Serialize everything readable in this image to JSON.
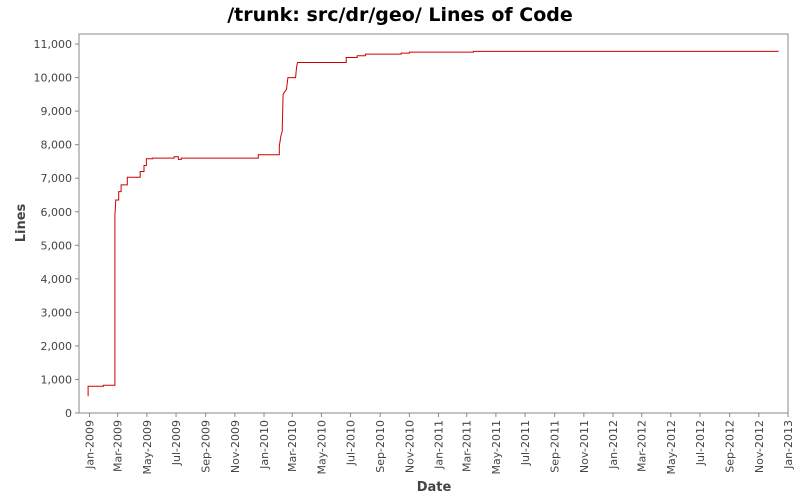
{
  "chart_data": {
    "type": "line",
    "title": "/trunk: src/dr/geo/ Lines of Code",
    "xlabel": "Date",
    "ylabel": "Lines",
    "ylim": [
      0,
      11300
    ],
    "xlim": [
      "2008-12-10",
      "2013-01-01"
    ],
    "grid": false,
    "legend": "none",
    "line_color": "#cc0000",
    "yticks": [
      0,
      1000,
      2000,
      3000,
      4000,
      5000,
      6000,
      7000,
      8000,
      9000,
      10000,
      11000
    ],
    "ytick_labels": [
      "0",
      "1,000",
      "2,000",
      "3,000",
      "4,000",
      "5,000",
      "6,000",
      "7,000",
      "8,000",
      "9,000",
      "10,000",
      "11,000"
    ],
    "xticks": [
      "2009-01-01",
      "2009-03-01",
      "2009-05-01",
      "2009-07-01",
      "2009-09-01",
      "2009-11-01",
      "2010-01-01",
      "2010-03-01",
      "2010-05-01",
      "2010-07-01",
      "2010-09-01",
      "2010-11-01",
      "2011-01-01",
      "2011-03-01",
      "2011-05-01",
      "2011-07-01",
      "2011-09-01",
      "2011-11-01",
      "2012-01-01",
      "2012-03-01",
      "2012-05-01",
      "2012-07-01",
      "2012-09-01",
      "2012-11-01",
      "2013-01-01"
    ],
    "xtick_labels": [
      "Jan-2009",
      "Mar-2009",
      "May-2009",
      "Jul-2009",
      "Sep-2009",
      "Nov-2009",
      "Jan-2010",
      "Mar-2010",
      "May-2010",
      "Jul-2010",
      "Sep-2010",
      "Nov-2010",
      "Jan-2011",
      "Mar-2011",
      "May-2011",
      "Jul-2011",
      "Sep-2011",
      "Nov-2011",
      "Jan-2012",
      "Mar-2012",
      "May-2012",
      "Jul-2012",
      "Sep-2012",
      "Nov-2012",
      "Jan-2013"
    ],
    "series": [
      {
        "points": [
          [
            "2008-12-29",
            500
          ],
          [
            "2008-12-29",
            800
          ],
          [
            "2009-01-30",
            800
          ],
          [
            "2009-01-30",
            830
          ],
          [
            "2009-02-23",
            830
          ],
          [
            "2009-02-23",
            5900
          ],
          [
            "2009-02-24",
            6100
          ],
          [
            "2009-02-25",
            6350
          ],
          [
            "2009-03-03",
            6350
          ],
          [
            "2009-03-03",
            6600
          ],
          [
            "2009-03-08",
            6600
          ],
          [
            "2009-03-08",
            6800
          ],
          [
            "2009-03-21",
            6800
          ],
          [
            "2009-03-21",
            7030
          ],
          [
            "2009-04-17",
            7030
          ],
          [
            "2009-04-17",
            7200
          ],
          [
            "2009-04-25",
            7200
          ],
          [
            "2009-04-25",
            7380
          ],
          [
            "2009-04-30",
            7380
          ],
          [
            "2009-04-30",
            7580
          ],
          [
            "2009-05-13",
            7580
          ],
          [
            "2009-05-13",
            7600
          ],
          [
            "2009-06-27",
            7600
          ],
          [
            "2009-06-27",
            7640
          ],
          [
            "2009-07-06",
            7640
          ],
          [
            "2009-07-06",
            7560
          ],
          [
            "2009-07-12",
            7560
          ],
          [
            "2009-07-12",
            7600
          ],
          [
            "2009-12-20",
            7600
          ],
          [
            "2009-12-20",
            7700
          ],
          [
            "2010-02-02",
            7700
          ],
          [
            "2010-02-02",
            7950
          ],
          [
            "2010-02-05",
            8250
          ],
          [
            "2010-02-08",
            8400
          ],
          [
            "2010-02-10",
            9500
          ],
          [
            "2010-02-12",
            9550
          ],
          [
            "2010-02-17",
            9650
          ],
          [
            "2010-02-20",
            10000
          ],
          [
            "2010-03-08",
            10000
          ],
          [
            "2010-03-10",
            10300
          ],
          [
            "2010-03-12",
            10450
          ],
          [
            "2010-06-22",
            10450
          ],
          [
            "2010-06-22",
            10600
          ],
          [
            "2010-07-15",
            10600
          ],
          [
            "2010-07-15",
            10650
          ],
          [
            "2010-08-01",
            10650
          ],
          [
            "2010-08-01",
            10700
          ],
          [
            "2010-10-15",
            10700
          ],
          [
            "2010-10-15",
            10730
          ],
          [
            "2010-11-01",
            10730
          ],
          [
            "2010-11-01",
            10760
          ],
          [
            "2011-03-15",
            10760
          ],
          [
            "2011-03-15",
            10780
          ],
          [
            "2012-12-11",
            10780
          ],
          [
            "2012-12-11",
            10800
          ]
        ]
      }
    ]
  }
}
